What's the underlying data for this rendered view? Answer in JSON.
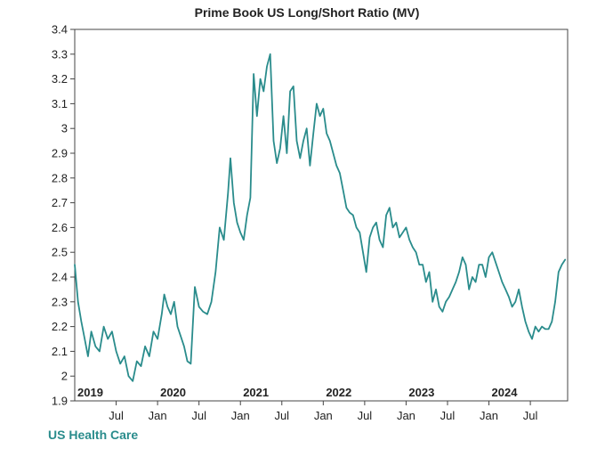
{
  "chart_data": {
    "type": "line",
    "title": "Prime Book US Long/Short Ratio (MV)",
    "xlabel": "",
    "ylabel": "",
    "ylim": [
      1.9,
      3.4
    ],
    "yticks": [
      1.9,
      2,
      2.1,
      2.2,
      2.3,
      2.4,
      2.5,
      2.6,
      2.7,
      2.8,
      2.9,
      3,
      3.1,
      3.2,
      3.3,
      3.4
    ],
    "ytick_labels": [
      "1.9",
      "2",
      "2.1",
      "2.2",
      "2.3",
      "2.4",
      "2.5",
      "2.6",
      "2.7",
      "2.8",
      "2.9",
      "3",
      "3.1",
      "3.2",
      "3.3",
      "3.4"
    ],
    "xlim": [
      2019.0,
      2024.95
    ],
    "year_labels": [
      {
        "x": 2019.0,
        "label": "2019"
      },
      {
        "x": 2020.0,
        "label": "2020"
      },
      {
        "x": 2021.0,
        "label": "2021"
      },
      {
        "x": 2022.0,
        "label": "2022"
      },
      {
        "x": 2023.0,
        "label": "2023"
      },
      {
        "x": 2024.0,
        "label": "2024"
      }
    ],
    "month_labels": [
      {
        "x": 2019.5,
        "label": "Jul"
      },
      {
        "x": 2020.0,
        "label": "Jan"
      },
      {
        "x": 2020.5,
        "label": "Jul"
      },
      {
        "x": 2021.0,
        "label": "Jan"
      },
      {
        "x": 2021.5,
        "label": "Jul"
      },
      {
        "x": 2022.0,
        "label": "Jan"
      },
      {
        "x": 2022.5,
        "label": "Jul"
      },
      {
        "x": 2023.0,
        "label": "Jan"
      },
      {
        "x": 2023.5,
        "label": "Jul"
      },
      {
        "x": 2024.0,
        "label": "Jan"
      },
      {
        "x": 2024.5,
        "label": "Jul"
      }
    ],
    "grid": false,
    "legend_position": "bottom-left",
    "series": [
      {
        "name": "US Health Care",
        "color": "#2a8c8c",
        "x": [
          2019.0,
          2019.04,
          2019.08,
          2019.12,
          2019.16,
          2019.2,
          2019.25,
          2019.3,
          2019.35,
          2019.4,
          2019.45,
          2019.5,
          2019.55,
          2019.6,
          2019.65,
          2019.7,
          2019.75,
          2019.8,
          2019.85,
          2019.9,
          2019.95,
          2020.0,
          2020.05,
          2020.08,
          2020.12,
          2020.16,
          2020.2,
          2020.24,
          2020.28,
          2020.32,
          2020.36,
          2020.4,
          2020.45,
          2020.5,
          2020.55,
          2020.6,
          2020.65,
          2020.7,
          2020.75,
          2020.8,
          2020.85,
          2020.88,
          2020.92,
          2020.96,
          2021.0,
          2021.04,
          2021.08,
          2021.12,
          2021.16,
          2021.2,
          2021.24,
          2021.28,
          2021.32,
          2021.36,
          2021.4,
          2021.44,
          2021.48,
          2021.52,
          2021.56,
          2021.6,
          2021.64,
          2021.68,
          2021.72,
          2021.76,
          2021.8,
          2021.84,
          2021.88,
          2021.92,
          2021.96,
          2022.0,
          2022.04,
          2022.08,
          2022.12,
          2022.16,
          2022.2,
          2022.24,
          2022.28,
          2022.32,
          2022.36,
          2022.4,
          2022.44,
          2022.48,
          2022.52,
          2022.56,
          2022.6,
          2022.64,
          2022.68,
          2022.72,
          2022.76,
          2022.8,
          2022.84,
          2022.88,
          2022.92,
          2022.96,
          2023.0,
          2023.04,
          2023.08,
          2023.12,
          2023.16,
          2023.2,
          2023.24,
          2023.28,
          2023.32,
          2023.36,
          2023.4,
          2023.44,
          2023.48,
          2023.52,
          2023.56,
          2023.6,
          2023.64,
          2023.68,
          2023.72,
          2023.76,
          2023.8,
          2023.84,
          2023.88,
          2023.92,
          2023.96,
          2024.0,
          2024.04,
          2024.08,
          2024.12,
          2024.16,
          2024.2,
          2024.24,
          2024.28,
          2024.32,
          2024.36,
          2024.4,
          2024.44,
          2024.48,
          2024.52,
          2024.56,
          2024.6,
          2024.64,
          2024.68,
          2024.72,
          2024.76,
          2024.8,
          2024.84,
          2024.88,
          2024.92
        ],
        "values": [
          2.45,
          2.3,
          2.22,
          2.15,
          2.08,
          2.18,
          2.12,
          2.1,
          2.2,
          2.15,
          2.18,
          2.1,
          2.05,
          2.08,
          2.0,
          1.98,
          2.06,
          2.04,
          2.12,
          2.08,
          2.18,
          2.15,
          2.25,
          2.33,
          2.28,
          2.25,
          2.3,
          2.2,
          2.16,
          2.12,
          2.06,
          2.05,
          2.36,
          2.28,
          2.26,
          2.25,
          2.3,
          2.42,
          2.6,
          2.55,
          2.74,
          2.88,
          2.7,
          2.62,
          2.58,
          2.55,
          2.65,
          2.72,
          3.22,
          3.05,
          3.2,
          3.15,
          3.25,
          3.3,
          2.95,
          2.86,
          2.92,
          3.05,
          2.9,
          3.15,
          3.17,
          2.95,
          2.88,
          2.95,
          3.0,
          2.85,
          2.98,
          3.1,
          3.05,
          3.08,
          2.98,
          2.95,
          2.9,
          2.85,
          2.82,
          2.75,
          2.68,
          2.66,
          2.65,
          2.6,
          2.58,
          2.5,
          2.42,
          2.56,
          2.6,
          2.62,
          2.55,
          2.52,
          2.65,
          2.68,
          2.6,
          2.62,
          2.56,
          2.58,
          2.6,
          2.55,
          2.52,
          2.5,
          2.45,
          2.45,
          2.38,
          2.42,
          2.3,
          2.35,
          2.28,
          2.26,
          2.3,
          2.32,
          2.35,
          2.38,
          2.42,
          2.48,
          2.45,
          2.35,
          2.4,
          2.38,
          2.45,
          2.45,
          2.4,
          2.48,
          2.5,
          2.46,
          2.42,
          2.38,
          2.35,
          2.32,
          2.28,
          2.3,
          2.35,
          2.28,
          2.22,
          2.18,
          2.15,
          2.2,
          2.18,
          2.2,
          2.19,
          2.19,
          2.22,
          2.3,
          2.42,
          2.45,
          2.47
        ]
      }
    ]
  }
}
